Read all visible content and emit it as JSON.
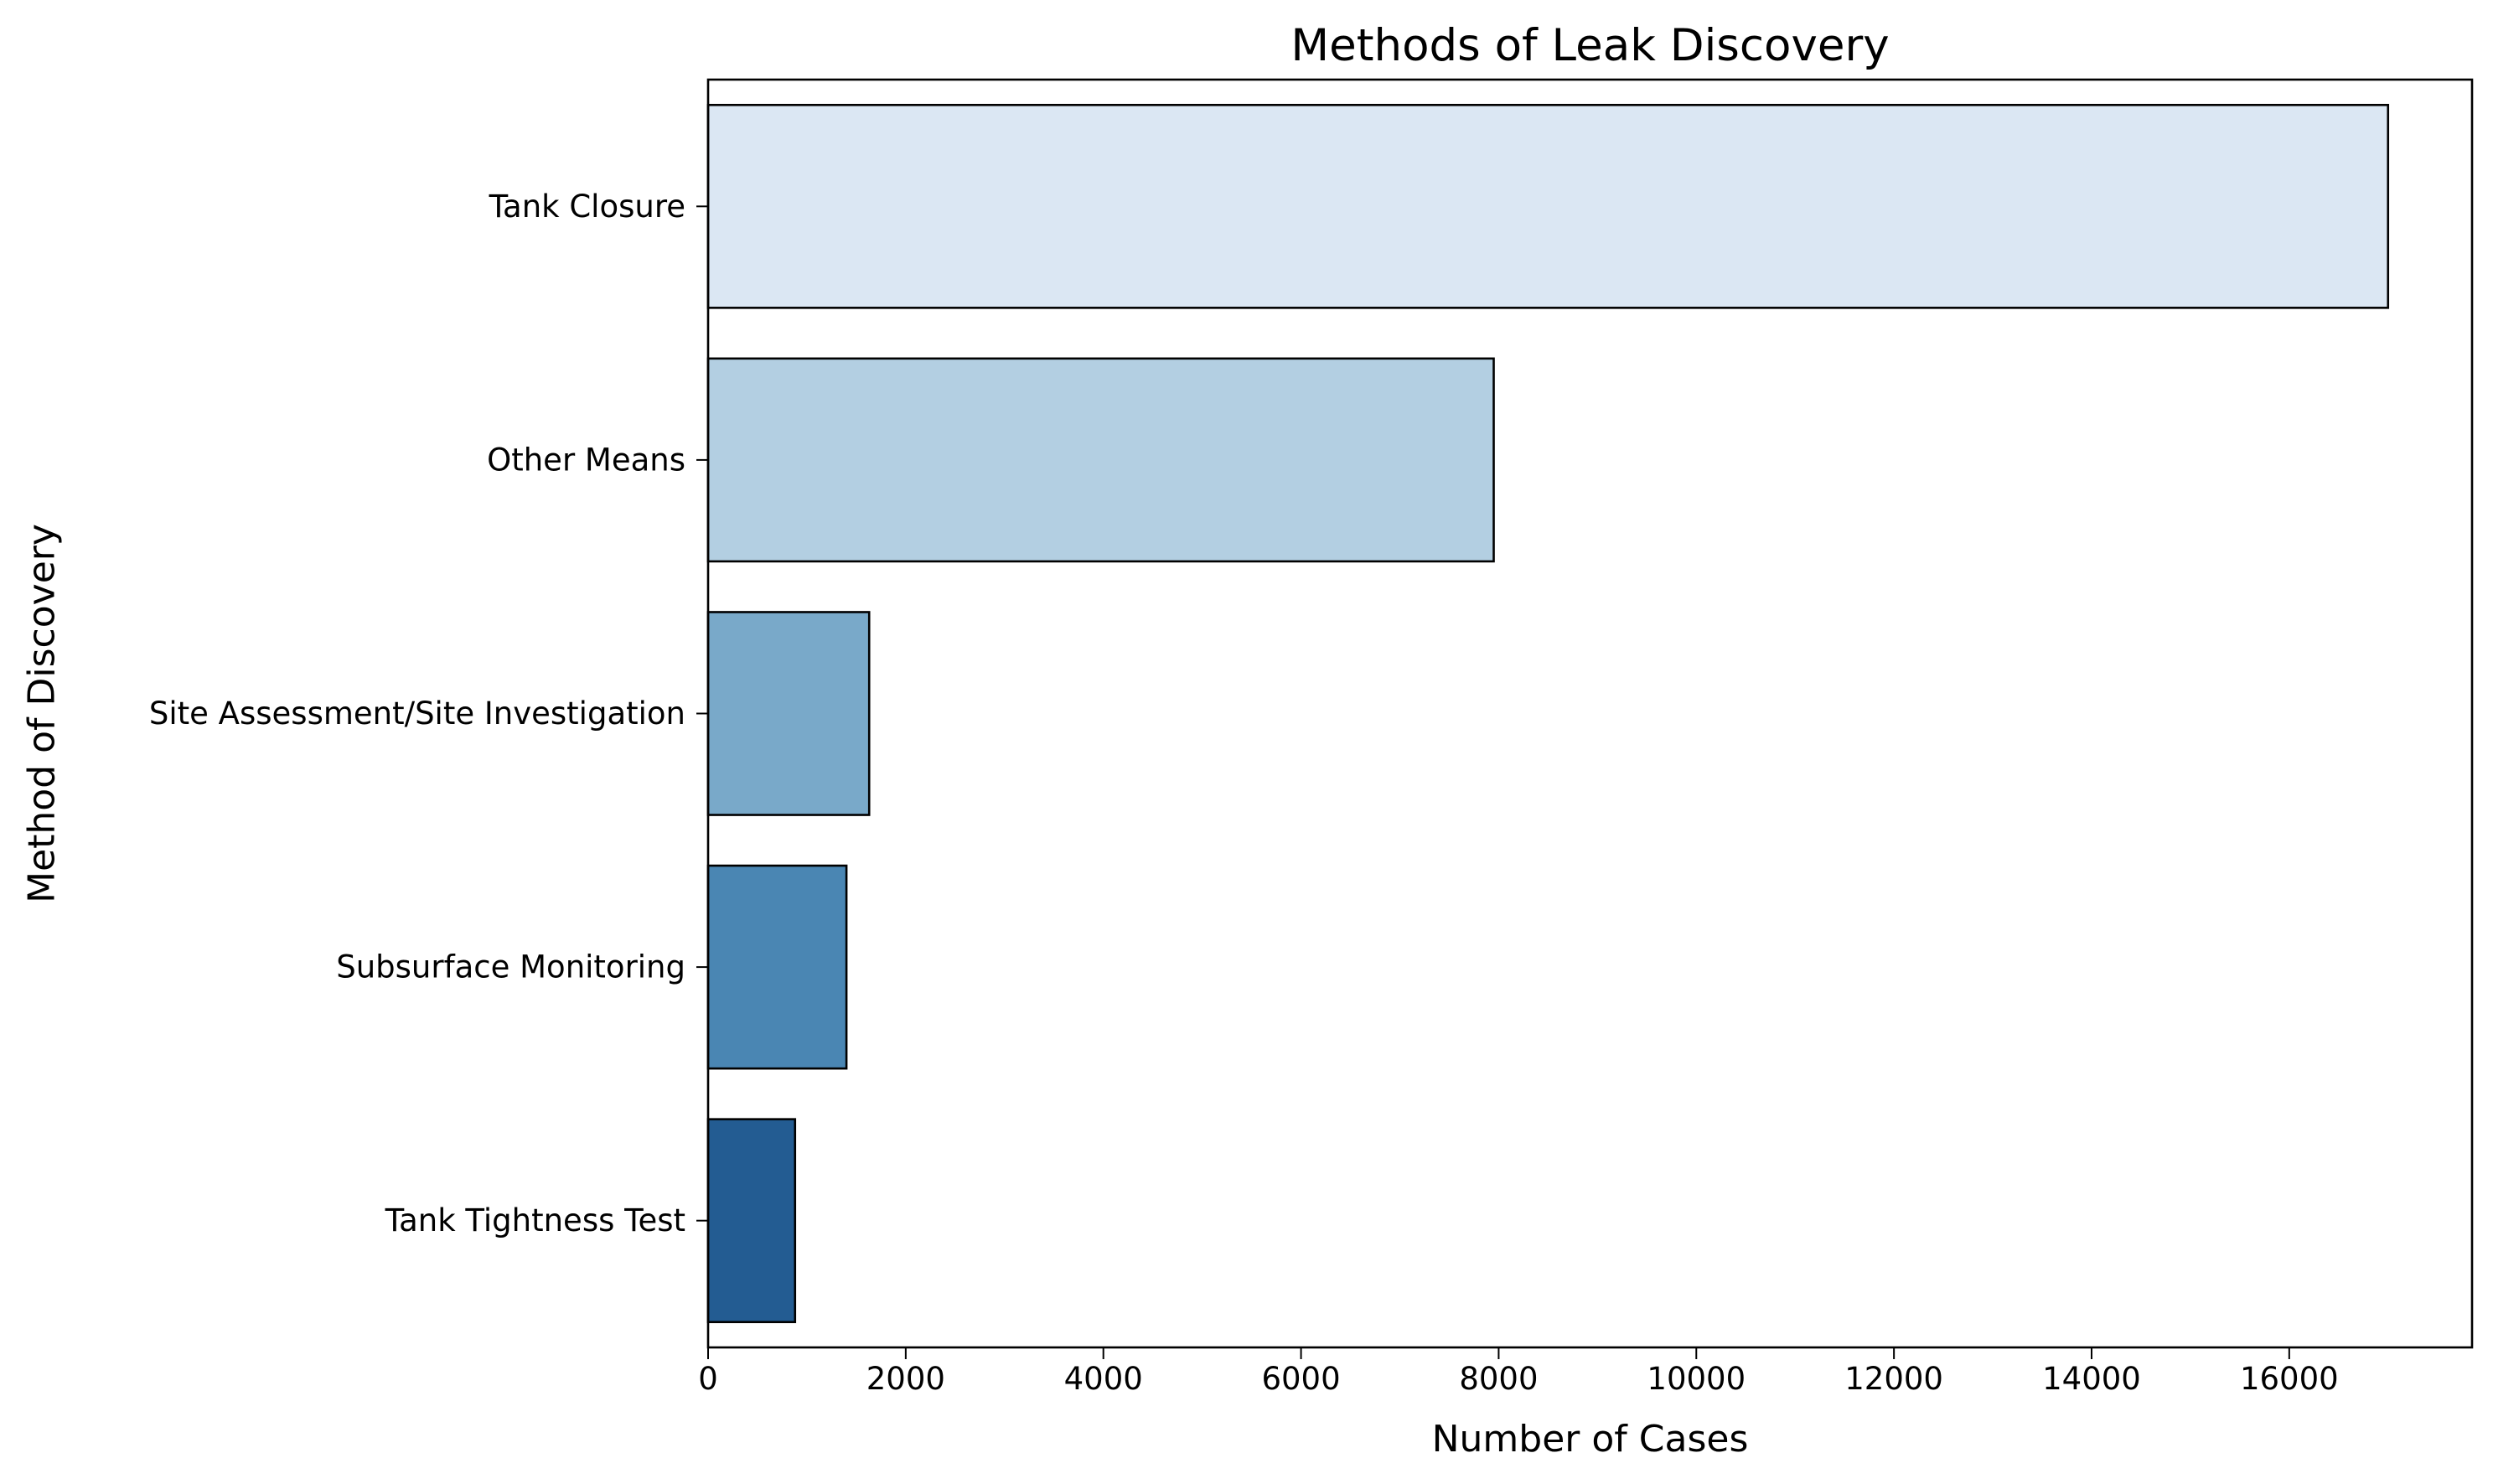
{
  "chart_data": {
    "type": "bar",
    "orientation": "horizontal",
    "title": "Methods of Leak Discovery",
    "xlabel": "Number of Cases",
    "ylabel": "Method of Discovery",
    "categories": [
      "Tank Closure",
      "Other Means",
      "Site Assessment/Site Investigation",
      "Subsurface Monitoring",
      "Tank Tightness Test"
    ],
    "values": [
      17000,
      7950,
      1630,
      1400,
      880
    ],
    "xlim": [
      0,
      17850
    ],
    "xticks": [
      0,
      2000,
      4000,
      6000,
      8000,
      10000,
      12000,
      14000,
      16000
    ],
    "grid": false,
    "legend": "none",
    "colors": [
      "#dbe7f3",
      "#b3cfe2",
      "#79a9c9",
      "#4a86b3",
      "#235c92"
    ],
    "edge_color": "#000000"
  }
}
